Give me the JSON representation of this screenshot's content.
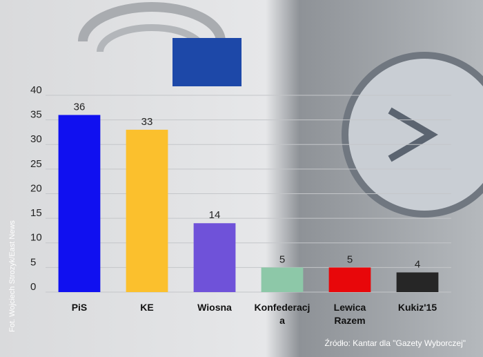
{
  "chart_data": {
    "type": "bar",
    "categories": [
      "PiS",
      "KE",
      "Wiosna",
      "Konfederacja",
      "Lewica Razem",
      "Kukiz'15"
    ],
    "values": [
      36,
      33,
      14,
      5,
      5,
      4
    ],
    "colors": [
      "#1010f0",
      "#fbc02d",
      "#6f52d9",
      "#8dc8a8",
      "#e8070a",
      "#262626"
    ],
    "ylim": [
      0,
      40
    ],
    "yticks": [
      0,
      5,
      10,
      15,
      20,
      25,
      30,
      35,
      40
    ],
    "grid": true,
    "source": "Źródło: Kantar dla \"Gazety Wyborczej\"",
    "credit": "Fot. Wojciech Strozyk/East News"
  }
}
